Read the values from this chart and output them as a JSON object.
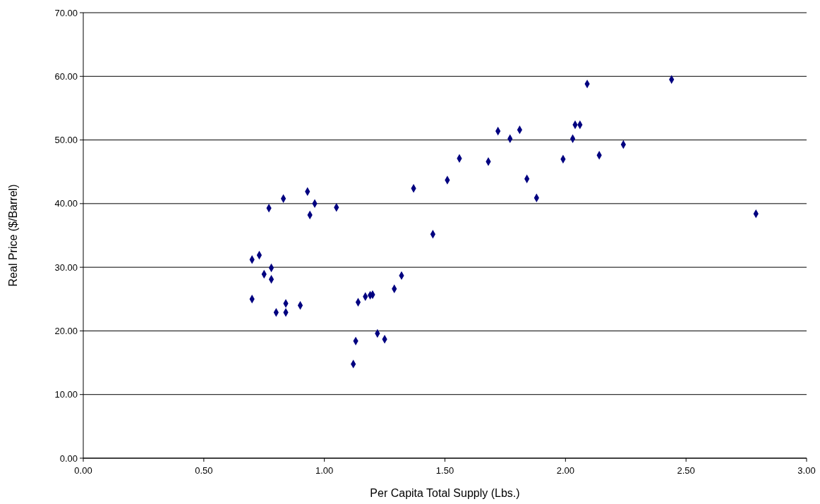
{
  "chart_data": {
    "type": "scatter",
    "xlabel": "Per Capita Total Supply (Lbs.)",
    "ylabel": "Real Price ($/Barrel)",
    "marker": "diamond",
    "grid": "y",
    "xlim": [
      0,
      3
    ],
    "ylim": [
      0,
      70
    ],
    "xticks": [
      {
        "value": 0,
        "label": "0.00"
      },
      {
        "value": 0.5,
        "label": "0.50"
      },
      {
        "value": 1,
        "label": "1.00"
      },
      {
        "value": 1.5,
        "label": "1.50"
      },
      {
        "value": 2,
        "label": "2.00"
      },
      {
        "value": 2.5,
        "label": "2.50"
      },
      {
        "value": 3,
        "label": "3.00"
      }
    ],
    "yticks": [
      {
        "value": 0,
        "label": "0.00"
      },
      {
        "value": 10,
        "label": "10.00"
      },
      {
        "value": 20,
        "label": "20.00"
      },
      {
        "value": 30,
        "label": "30.00"
      },
      {
        "value": 40,
        "label": "40.00"
      },
      {
        "value": 50,
        "label": "50.00"
      },
      {
        "value": 60,
        "label": "60.00"
      },
      {
        "value": 70,
        "label": "70.00"
      }
    ],
    "series": [
      {
        "color": "#000080",
        "x": [
          0.7,
          0.7,
          0.73,
          0.75,
          0.78,
          0.78,
          0.77,
          0.83,
          0.8,
          0.84,
          0.84,
          0.9,
          0.93,
          0.94,
          0.96,
          1.05,
          1.12,
          1.13,
          1.14,
          1.17,
          1.19,
          1.2,
          1.22,
          1.25,
          1.29,
          1.32,
          1.37,
          1.45,
          1.51,
          1.56,
          1.68,
          1.72,
          1.77,
          1.81,
          1.84,
          1.88,
          1.99,
          2.03,
          2.04,
          2.06,
          2.09,
          2.14,
          2.24,
          2.44,
          2.79
        ],
        "values": [
          25.0,
          31.2,
          31.9,
          28.9,
          29.9,
          28.1,
          39.3,
          40.8,
          22.9,
          24.3,
          22.9,
          24.0,
          41.9,
          38.2,
          40.0,
          39.4,
          14.8,
          18.4,
          24.5,
          25.4,
          25.6,
          25.7,
          19.6,
          18.7,
          26.6,
          28.7,
          42.4,
          35.2,
          43.7,
          47.1,
          46.6,
          51.4,
          50.2,
          51.6,
          43.9,
          40.9,
          47.0,
          50.2,
          52.4,
          52.4,
          58.8,
          47.6,
          49.3,
          59.5,
          38.4
        ]
      }
    ]
  }
}
